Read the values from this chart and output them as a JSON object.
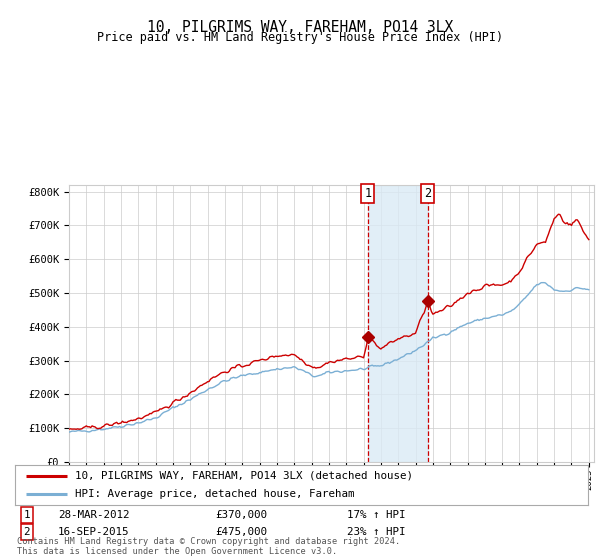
{
  "title": "10, PILGRIMS WAY, FAREHAM, PO14 3LX",
  "subtitle": "Price paid vs. HM Land Registry's House Price Index (HPI)",
  "ylim": [
    0,
    820000
  ],
  "yticks": [
    0,
    100000,
    200000,
    300000,
    400000,
    500000,
    600000,
    700000,
    800000
  ],
  "ytick_labels": [
    "£0",
    "£100K",
    "£200K",
    "£300K",
    "£400K",
    "£500K",
    "£600K",
    "£700K",
    "£800K"
  ],
  "hpi_color": "#7bafd4",
  "price_color": "#cc0000",
  "marker_color": "#aa0000",
  "sale1_date": 2012.24,
  "sale1_price": 370000,
  "sale2_date": 2015.71,
  "sale2_price": 475000,
  "shade_color": "#daeaf5",
  "legend_label1": "10, PILGRIMS WAY, FAREHAM, PO14 3LX (detached house)",
  "legend_label2": "HPI: Average price, detached house, Fareham",
  "table_row1": [
    "28-MAR-2012",
    "£370,000",
    "17% ↑ HPI"
  ],
  "table_row2": [
    "16-SEP-2015",
    "£475,000",
    "23% ↑ HPI"
  ],
  "copyright_text": "Contains HM Land Registry data © Crown copyright and database right 2024.\nThis data is licensed under the Open Government Licence v3.0.",
  "background_color": "#ffffff",
  "grid_color": "#cccccc"
}
